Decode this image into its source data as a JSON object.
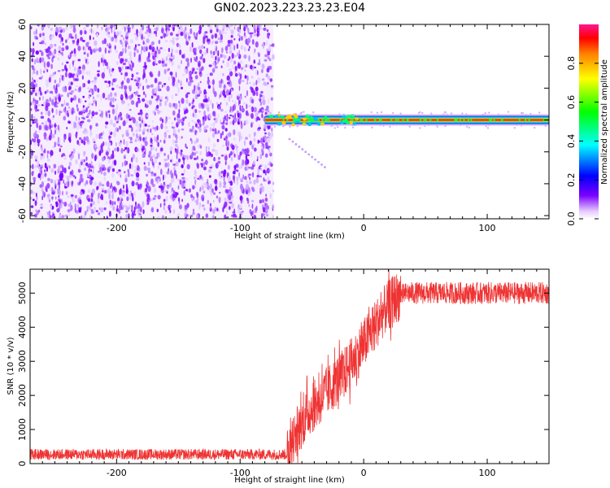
{
  "title": "GN02.2023.223.23.23.E04",
  "chart_data": [
    {
      "type": "heatmap",
      "title": "GN02.2023.223.23.23.E04",
      "xlabel": "Height of straight line (km)",
      "ylabel": "Frequency (Hz)",
      "xlim": [
        -270,
        150
      ],
      "ylim": [
        -62,
        60
      ],
      "xticks": [
        "-200",
        "-100",
        "0",
        "100"
      ],
      "xtick_values": [
        -200,
        -100,
        0,
        100
      ],
      "yticks": [
        "60",
        "40",
        "20",
        "0",
        "-20",
        "-40",
        "-60"
      ],
      "ytick_values": [
        60,
        40,
        20,
        0,
        -20,
        -40,
        -60
      ],
      "noise_region_x": [
        -270,
        -73
      ],
      "signal_line_frequency_hz": 0,
      "colorbar": {
        "label": "Normalized spectral amplitude",
        "ticks": [
          "0.0",
          "0.2",
          "0.4",
          "0.6",
          "0.8"
        ],
        "tick_values": [
          0.0,
          0.2,
          0.4,
          0.6,
          0.8
        ],
        "range": [
          0,
          1
        ]
      }
    },
    {
      "type": "line",
      "xlabel": "Height of straight line (km)",
      "ylabel": "SNR (10 * v/v)",
      "xlim": [
        -270,
        150
      ],
      "ylim": [
        0,
        5700
      ],
      "xticks": [
        "-200",
        "-100",
        "0",
        "100"
      ],
      "xtick_values": [
        -200,
        -100,
        0,
        100
      ],
      "yticks": [
        "0",
        "1000",
        "2000",
        "3000",
        "4000",
        "5000"
      ],
      "ytick_values": [
        0,
        1000,
        2000,
        3000,
        4000,
        5000
      ],
      "color": "#ef3333",
      "series": [
        {
          "x": [
            -270,
            -200,
            -100,
            -62,
            -55,
            -45,
            -35,
            -25,
            -15,
            -5,
            5,
            15,
            25,
            35,
            60,
            100,
            150
          ],
          "values": [
            270,
            270,
            270,
            270,
            900,
            1500,
            1900,
            2300,
            2700,
            3200,
            3800,
            4400,
            4850,
            5000,
            5000,
            5000,
            5000
          ]
        }
      ]
    }
  ]
}
